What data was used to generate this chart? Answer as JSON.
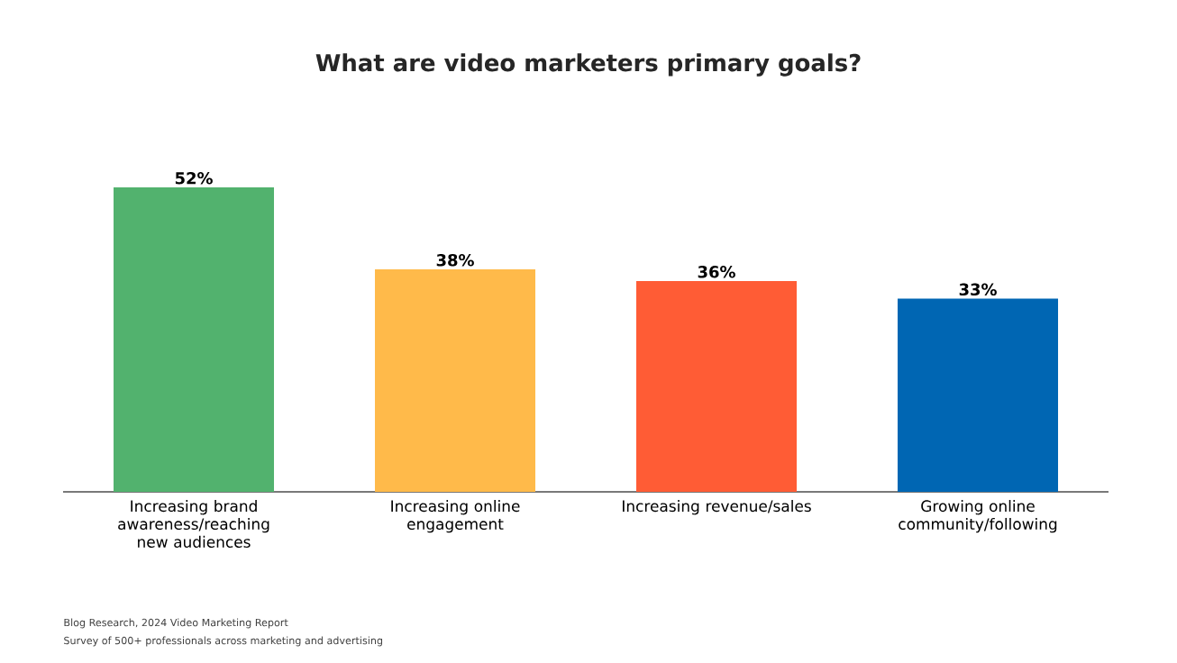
{
  "chart_data": {
    "type": "bar",
    "title": "What are video marketers primary goals?",
    "categories": [
      "Increasing brand awareness/reaching new audiences",
      "Increasing online engagement",
      "Increasing revenue/sales",
      "Growing online community/following"
    ],
    "values": [
      52,
      38,
      36,
      33
    ],
    "value_labels": [
      "52%",
      "38%",
      "36%",
      "33%"
    ],
    "colors": [
      "#52b26e",
      "#ffba4a",
      "#ff5c35",
      "#0066b3"
    ],
    "annotations": [
      "Blog Research, 2024 Video Marketing Report",
      "Survey of 500+ professionals across marketing and advertising"
    ]
  }
}
